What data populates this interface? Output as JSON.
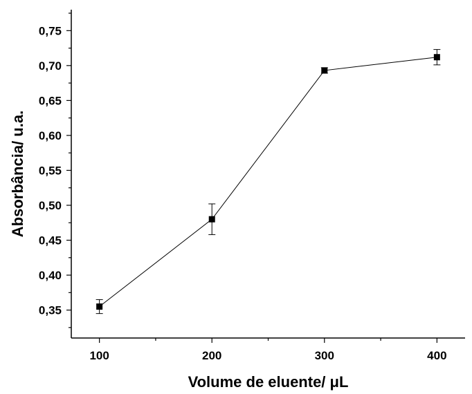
{
  "chart_data": {
    "type": "scatter",
    "title": "",
    "xlabel": "Volume de eluente/ μL",
    "ylabel": "Absorbância/ u.a.",
    "xlim": [
      75,
      425
    ],
    "ylim": [
      0.31,
      0.78
    ],
    "x_ticks": [
      100,
      200,
      300,
      400
    ],
    "x_tick_labels": [
      "100",
      "200",
      "300",
      "400"
    ],
    "y_ticks": [
      0.35,
      0.4,
      0.45,
      0.5,
      0.55,
      0.6,
      0.65,
      0.7,
      0.75
    ],
    "y_tick_labels": [
      "0,35",
      "0,40",
      "0,45",
      "0,50",
      "0,55",
      "0,60",
      "0,65",
      "0,70",
      "0,75"
    ],
    "grid": false,
    "legend": "none",
    "series": [
      {
        "marker": "square",
        "line": true,
        "color": "#000000",
        "points": [
          {
            "x": 100,
            "y": 0.355,
            "err": 0.01
          },
          {
            "x": 200,
            "y": 0.48,
            "err": 0.022
          },
          {
            "x": 300,
            "y": 0.693,
            "err": 0.004
          },
          {
            "x": 400,
            "y": 0.712,
            "err": 0.011
          }
        ]
      }
    ]
  }
}
